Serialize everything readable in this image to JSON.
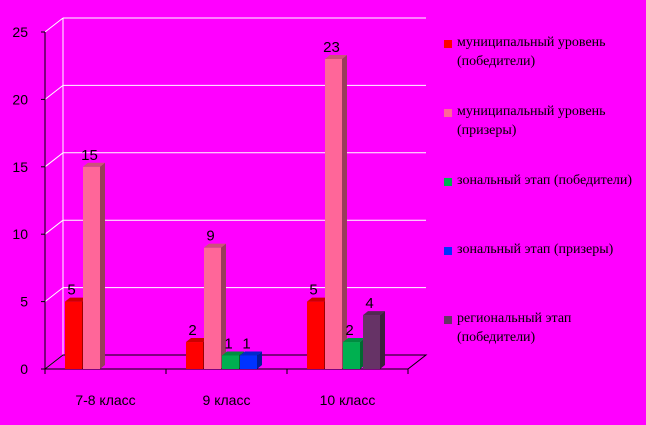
{
  "chart_data": {
    "type": "bar",
    "title": "",
    "xlabel": "",
    "ylabel": "",
    "categories": [
      "7-8 класс",
      "9 класс",
      "10 класс"
    ],
    "ylim": [
      0,
      25
    ],
    "yticks": [
      0,
      5,
      10,
      15,
      20,
      25
    ],
    "grid": true,
    "legend_position": "right",
    "series": [
      {
        "name": "муниципальный уровень (победители)",
        "color": "#ff0000",
        "values": [
          5,
          2,
          5
        ]
      },
      {
        "name": "муниципальный уровень (призеры)",
        "color": "#ff6699",
        "values": [
          15,
          9,
          23
        ]
      },
      {
        "name": "зональный этап (победители)",
        "color": "#00b050",
        "values": [
          null,
          1,
          2
        ]
      },
      {
        "name": "зональный этап (призеры)",
        "color": "#0033ff",
        "values": [
          null,
          1,
          null
        ]
      },
      {
        "name": "региональный этап (победители)",
        "color": "#663366",
        "values": [
          null,
          null,
          4
        ]
      }
    ]
  }
}
